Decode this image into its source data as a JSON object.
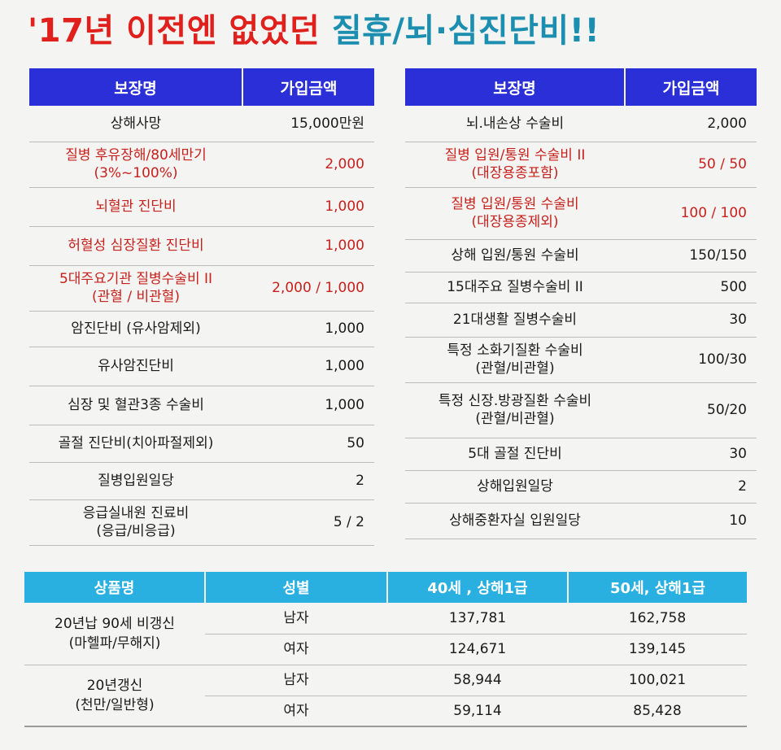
{
  "title": {
    "part1": "'17년 이전엔 없었던",
    "part2": "질휴/뇌·심진단비!!"
  },
  "colors": {
    "title_red": "#e0201c",
    "title_blue": "#1c8fb0",
    "header_blue": "#2b2fd8",
    "header_cyan": "#2ab0e0",
    "emphasis_red": "#c8201c"
  },
  "left_table": {
    "headers": [
      "보장명",
      "가입금액"
    ],
    "rows": [
      {
        "name": "상해사망",
        "amount": "15,000만원",
        "highlight": false
      },
      {
        "name": "질병 후유장해/80세만기\n(3%~100%)",
        "amount": "2,000",
        "highlight": true
      },
      {
        "name": "뇌혈관 진단비",
        "amount": "1,000",
        "highlight": true
      },
      {
        "name": "허혈성 심장질환 진단비",
        "amount": "1,000",
        "highlight": true
      },
      {
        "name": "5대주요기관 질병수술비 II\n(관혈 / 비관혈)",
        "amount": "2,000 / 1,000",
        "highlight": true
      },
      {
        "name": "암진단비 (유사암제외)",
        "amount": "1,000",
        "highlight": false
      },
      {
        "name": "유사암진단비",
        "amount": "1,000",
        "highlight": false
      },
      {
        "name": "심장 및 혈관3종 수술비",
        "amount": "1,000",
        "highlight": false
      },
      {
        "name": "골절 진단비(치아파절제외)",
        "amount": "50",
        "highlight": false
      },
      {
        "name": "질병입원일당",
        "amount": "2",
        "highlight": false
      },
      {
        "name": "응급실내원 진료비\n(응급/비응급)",
        "amount": "5 / 2",
        "highlight": false
      }
    ]
  },
  "right_table": {
    "headers": [
      "보장명",
      "가입금액"
    ],
    "rows": [
      {
        "name": "뇌.내손상 수술비",
        "amount": "2,000",
        "highlight": false
      },
      {
        "name": "질병 입원/통원 수술비 II\n(대장용종포함)",
        "amount": "50 / 50",
        "highlight": true
      },
      {
        "name": "질병 입원/통원 수술비\n(대장용종제외)",
        "amount": "100 / 100",
        "highlight": true
      },
      {
        "name": "상해 입원/통원 수술비",
        "amount": "150/150",
        "highlight": false
      },
      {
        "name": "15대주요 질병수술비 II",
        "amount": "500",
        "highlight": false
      },
      {
        "name": "21대생활 질병수술비",
        "amount": "30",
        "highlight": false
      },
      {
        "name": "특정 소화기질환 수술비\n(관혈/비관혈)",
        "amount": "100/30",
        "highlight": false
      },
      {
        "name": "특정 신장.방광질환 수술비\n(관혈/비관혈)",
        "amount": "50/20",
        "highlight": false
      },
      {
        "name": "5대 골절 진단비",
        "amount": "30",
        "highlight": false
      },
      {
        "name": "상해입원일당",
        "amount": "2",
        "highlight": false
      },
      {
        "name": "상해중환자실 입원일당",
        "amount": "10",
        "highlight": false
      }
    ]
  },
  "premium_table": {
    "headers": [
      "상품명",
      "성별",
      "40세 , 상해1급",
      "50세, 상해1급"
    ],
    "products": [
      {
        "name": "20년납 90세 비갱신\n(마헬파/무해지)",
        "rows": [
          {
            "gender": "남자",
            "age40": "137,781",
            "age50": "162,758"
          },
          {
            "gender": "여자",
            "age40": "124,671",
            "age50": "139,145"
          }
        ]
      },
      {
        "name": "20년갱신\n(천만/일반형)",
        "rows": [
          {
            "gender": "남자",
            "age40": "58,944",
            "age50": "100,021"
          },
          {
            "gender": "여자",
            "age40": "59,114",
            "age50": "85,428"
          }
        ]
      }
    ]
  }
}
